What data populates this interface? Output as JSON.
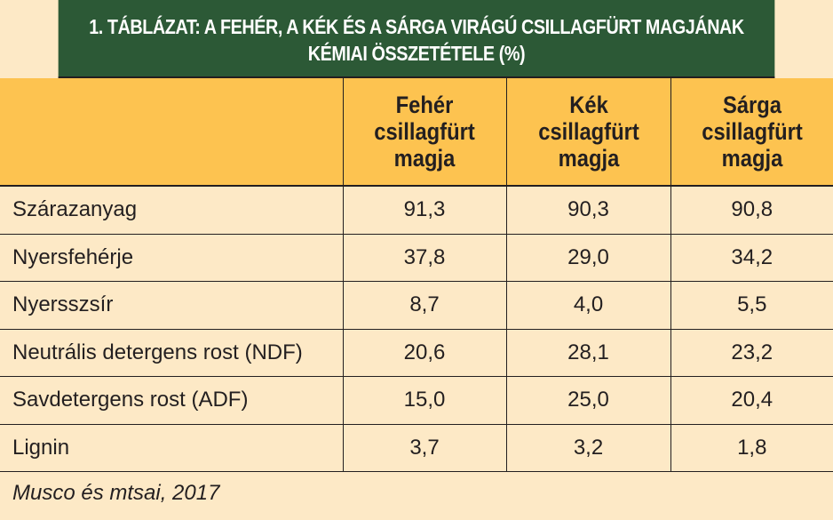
{
  "title": {
    "line1": "1. TÁBLÁZAT: A FEHÉR, A KÉK ÉS A SÁRGA VIRÁGÚ CSILLAGFÜRT MAGJÁNAK",
    "line2": "KÉMIAI ÖSSZETÉTELE (%)"
  },
  "columns": [
    "",
    "Fehér csillagfürt magja",
    "Kék csillagfürt magja",
    "Sárga csillagfürt magja"
  ],
  "rows": [
    [
      "Szárazanyag",
      "91,3",
      "90,3",
      "90,8"
    ],
    [
      "Nyersfehérje",
      "37,8",
      "29,0",
      "34,2"
    ],
    [
      "Nyersszsír",
      "8,7",
      "4,0",
      "5,5"
    ],
    [
      "Neutrális detergens rost (NDF)",
      "20,6",
      "28,1",
      "23,2"
    ],
    [
      "Savdetergens rost (ADF)",
      "15,0",
      "25,0",
      "20,4"
    ],
    [
      "Lignin",
      "3,7",
      "3,2",
      "1,8"
    ]
  ],
  "source": "Musco és mtsai, 2017",
  "colors": {
    "title_bg": "#2c5936",
    "header_bg": "#fdc350",
    "body_bg": "#fde9c6"
  }
}
